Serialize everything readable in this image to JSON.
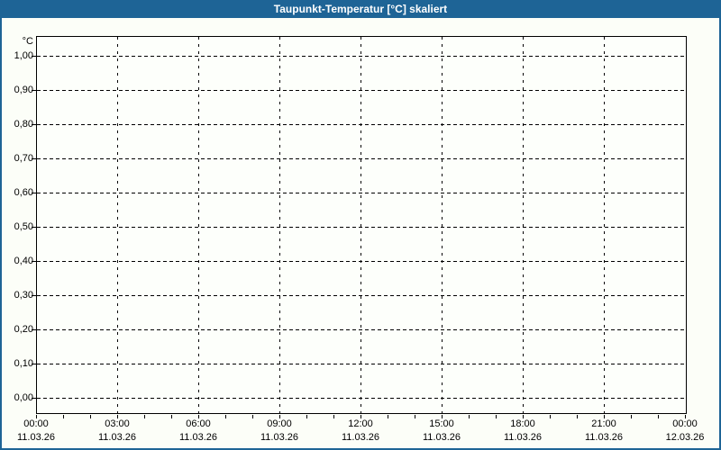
{
  "colors": {
    "accent_blue": "#1E6496",
    "window_background": "#FCFEF8",
    "plot_background": "#FDFFFB",
    "grid_line": "#000000",
    "title_text": "#FFFFFF",
    "label_text": "#000000"
  },
  "chart_data": {
    "type": "line",
    "title": "Taupunkt-Temperatur [°C] skaliert",
    "series": [],
    "y_axis": {
      "unit_label": "°C",
      "tick_labels": [
        "1,00",
        "0,90",
        "0,80",
        "0,70",
        "0,60",
        "0,50",
        "0,40",
        "0,30",
        "0,20",
        "0,10",
        "0,00"
      ],
      "min": 0.0,
      "max": 1.0,
      "tick_step": 0.1,
      "decimal_separator": ","
    },
    "x_axis": {
      "ticks": [
        {
          "time": "00:00",
          "date": "11.03.26"
        },
        {
          "time": "03:00",
          "date": "11.03.26"
        },
        {
          "time": "06:00",
          "date": "11.03.26"
        },
        {
          "time": "09:00",
          "date": "11.03.26"
        },
        {
          "time": "12:00",
          "date": "11.03.26"
        },
        {
          "time": "15:00",
          "date": "11.03.26"
        },
        {
          "time": "18:00",
          "date": "11.03.26"
        },
        {
          "time": "21:00",
          "date": "11.03.26"
        },
        {
          "time": "00:00",
          "date": "12.03.26"
        }
      ],
      "major_step_hours": 3,
      "minor_step_hours": 1
    },
    "grid": {
      "horizontal": true,
      "vertical": true,
      "style": "dashed"
    },
    "legend": null
  }
}
